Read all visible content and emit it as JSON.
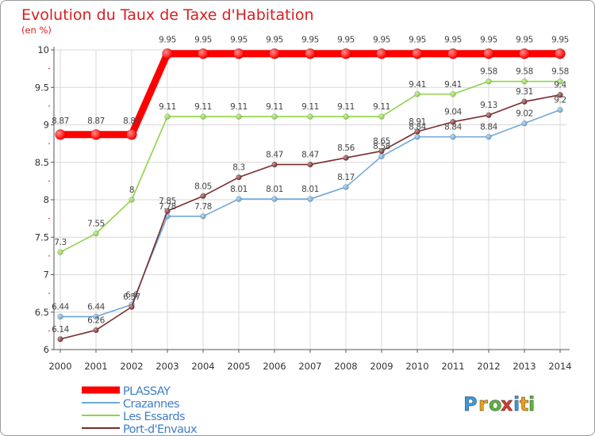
{
  "chart_data": {
    "type": "line",
    "title": "Evolution du Taux de Taxe d'Habitation",
    "ylabel": "(en %)",
    "xlabel": "",
    "x": [
      "2000",
      "2001",
      "2002",
      "2003",
      "2004",
      "2005",
      "2006",
      "2007",
      "2008",
      "2009",
      "2010",
      "2011",
      "2012",
      "2013",
      "2014"
    ],
    "ylim": [
      6,
      10
    ],
    "yticks": [
      "6",
      "6.5",
      "7",
      "7.5",
      "8",
      "8.5",
      "9",
      "9.5",
      "10"
    ],
    "ytick_values": [
      6,
      6.5,
      7,
      7.5,
      8,
      8.5,
      9,
      9.5,
      10
    ],
    "grid": true,
    "legend_position": "bottom-left",
    "series": [
      {
        "name": "PLASSAY",
        "color": "#ff0000",
        "values": [
          8.87,
          8.87,
          8.87,
          9.95,
          9.95,
          9.95,
          9.95,
          9.95,
          9.95,
          9.95,
          9.95,
          9.95,
          9.95,
          9.95,
          9.95
        ],
        "labels": [
          "8.87",
          "8.87",
          "8.87",
          "9.95",
          "9.95",
          "9.95",
          "9.95",
          "9.95",
          "9.95",
          "9.95",
          "9.95",
          "9.95",
          "9.95",
          "9.95",
          "9.95"
        ]
      },
      {
        "name": "Crazannes",
        "color": "#6fa8d8",
        "values": [
          6.44,
          6.44,
          6.6,
          7.78,
          7.78,
          8.01,
          8.01,
          8.01,
          8.17,
          8.58,
          8.84,
          8.84,
          8.84,
          9.02,
          9.2
        ],
        "labels": [
          "6.44",
          "6.44",
          "6.6",
          "7.78",
          "7.78",
          "8.01",
          "8.01",
          "8.01",
          "8.17",
          "8.58",
          "8.84",
          "8.84",
          "8.84",
          "9.02",
          "9.2"
        ]
      },
      {
        "name": "Les Essards",
        "color": "#8fd448",
        "values": [
          7.3,
          7.55,
          8,
          9.11,
          9.11,
          9.11,
          9.11,
          9.11,
          9.11,
          9.11,
          9.41,
          9.41,
          9.58,
          9.58,
          9.58
        ],
        "labels": [
          "7.3",
          "7.55",
          "8",
          "9.11",
          "9.11",
          "9.11",
          "9.11",
          "9.11",
          "9.11",
          "9.11",
          "9.41",
          "9.41",
          "9.58",
          "9.58",
          "9.58"
        ]
      },
      {
        "name": "Port-d'Envaux",
        "color": "#7a2c2c",
        "values": [
          6.14,
          6.26,
          6.57,
          7.85,
          8.05,
          8.3,
          8.47,
          8.47,
          8.56,
          8.65,
          8.91,
          9.04,
          9.13,
          9.31,
          9.4
        ],
        "labels": [
          "6.14",
          "6.26",
          "6.57",
          "7.85",
          "8.05",
          "8.3",
          "8.47",
          "8.47",
          "8.56",
          "8.65",
          "8.91",
          "9.04",
          "9.13",
          "9.31",
          "9.4"
        ]
      }
    ]
  },
  "logo": {
    "letters": [
      "P",
      "r",
      "o",
      "x",
      "i",
      "t",
      "i"
    ],
    "colors": [
      "#3a9ad9",
      "#e8a21a",
      "#5bb43a",
      "#d83a2c",
      "#3a9ad9",
      "#e8a21a",
      "#5bb43a"
    ]
  },
  "theme": {
    "title_color": "#d81e1e",
    "grid_color": "#d8d8d8",
    "axis_color": "#555555",
    "label_color": "#555555"
  }
}
